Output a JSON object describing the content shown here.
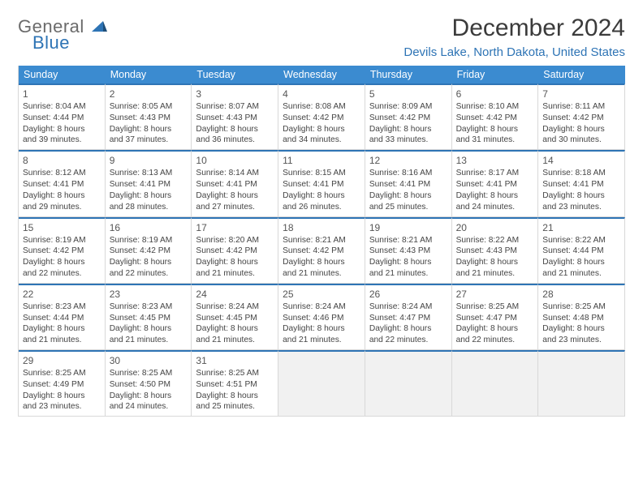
{
  "logo": {
    "line1": "General",
    "line2": "Blue"
  },
  "title": "December 2024",
  "location": "Devils Lake, North Dakota, United States",
  "colors": {
    "header_bg": "#3b8bd0",
    "accent": "#2e74b5",
    "text": "#3b3b3b",
    "cell_border": "#d8d8d8",
    "empty_bg": "#f1f1f1"
  },
  "days_of_week": [
    "Sunday",
    "Monday",
    "Tuesday",
    "Wednesday",
    "Thursday",
    "Friday",
    "Saturday"
  ],
  "days": [
    {
      "n": 1,
      "sunrise": "8:04 AM",
      "sunset": "4:44 PM",
      "daylight": "8 hours and 39 minutes."
    },
    {
      "n": 2,
      "sunrise": "8:05 AM",
      "sunset": "4:43 PM",
      "daylight": "8 hours and 37 minutes."
    },
    {
      "n": 3,
      "sunrise": "8:07 AM",
      "sunset": "4:43 PM",
      "daylight": "8 hours and 36 minutes."
    },
    {
      "n": 4,
      "sunrise": "8:08 AM",
      "sunset": "4:42 PM",
      "daylight": "8 hours and 34 minutes."
    },
    {
      "n": 5,
      "sunrise": "8:09 AM",
      "sunset": "4:42 PM",
      "daylight": "8 hours and 33 minutes."
    },
    {
      "n": 6,
      "sunrise": "8:10 AM",
      "sunset": "4:42 PM",
      "daylight": "8 hours and 31 minutes."
    },
    {
      "n": 7,
      "sunrise": "8:11 AM",
      "sunset": "4:42 PM",
      "daylight": "8 hours and 30 minutes."
    },
    {
      "n": 8,
      "sunrise": "8:12 AM",
      "sunset": "4:41 PM",
      "daylight": "8 hours and 29 minutes."
    },
    {
      "n": 9,
      "sunrise": "8:13 AM",
      "sunset": "4:41 PM",
      "daylight": "8 hours and 28 minutes."
    },
    {
      "n": 10,
      "sunrise": "8:14 AM",
      "sunset": "4:41 PM",
      "daylight": "8 hours and 27 minutes."
    },
    {
      "n": 11,
      "sunrise": "8:15 AM",
      "sunset": "4:41 PM",
      "daylight": "8 hours and 26 minutes."
    },
    {
      "n": 12,
      "sunrise": "8:16 AM",
      "sunset": "4:41 PM",
      "daylight": "8 hours and 25 minutes."
    },
    {
      "n": 13,
      "sunrise": "8:17 AM",
      "sunset": "4:41 PM",
      "daylight": "8 hours and 24 minutes."
    },
    {
      "n": 14,
      "sunrise": "8:18 AM",
      "sunset": "4:41 PM",
      "daylight": "8 hours and 23 minutes."
    },
    {
      "n": 15,
      "sunrise": "8:19 AM",
      "sunset": "4:42 PM",
      "daylight": "8 hours and 22 minutes."
    },
    {
      "n": 16,
      "sunrise": "8:19 AM",
      "sunset": "4:42 PM",
      "daylight": "8 hours and 22 minutes."
    },
    {
      "n": 17,
      "sunrise": "8:20 AM",
      "sunset": "4:42 PM",
      "daylight": "8 hours and 21 minutes."
    },
    {
      "n": 18,
      "sunrise": "8:21 AM",
      "sunset": "4:42 PM",
      "daylight": "8 hours and 21 minutes."
    },
    {
      "n": 19,
      "sunrise": "8:21 AM",
      "sunset": "4:43 PM",
      "daylight": "8 hours and 21 minutes."
    },
    {
      "n": 20,
      "sunrise": "8:22 AM",
      "sunset": "4:43 PM",
      "daylight": "8 hours and 21 minutes."
    },
    {
      "n": 21,
      "sunrise": "8:22 AM",
      "sunset": "4:44 PM",
      "daylight": "8 hours and 21 minutes."
    },
    {
      "n": 22,
      "sunrise": "8:23 AM",
      "sunset": "4:44 PM",
      "daylight": "8 hours and 21 minutes."
    },
    {
      "n": 23,
      "sunrise": "8:23 AM",
      "sunset": "4:45 PM",
      "daylight": "8 hours and 21 minutes."
    },
    {
      "n": 24,
      "sunrise": "8:24 AM",
      "sunset": "4:45 PM",
      "daylight": "8 hours and 21 minutes."
    },
    {
      "n": 25,
      "sunrise": "8:24 AM",
      "sunset": "4:46 PM",
      "daylight": "8 hours and 21 minutes."
    },
    {
      "n": 26,
      "sunrise": "8:24 AM",
      "sunset": "4:47 PM",
      "daylight": "8 hours and 22 minutes."
    },
    {
      "n": 27,
      "sunrise": "8:25 AM",
      "sunset": "4:47 PM",
      "daylight": "8 hours and 22 minutes."
    },
    {
      "n": 28,
      "sunrise": "8:25 AM",
      "sunset": "4:48 PM",
      "daylight": "8 hours and 23 minutes."
    },
    {
      "n": 29,
      "sunrise": "8:25 AM",
      "sunset": "4:49 PM",
      "daylight": "8 hours and 23 minutes."
    },
    {
      "n": 30,
      "sunrise": "8:25 AM",
      "sunset": "4:50 PM",
      "daylight": "8 hours and 24 minutes."
    },
    {
      "n": 31,
      "sunrise": "8:25 AM",
      "sunset": "4:51 PM",
      "daylight": "8 hours and 25 minutes."
    }
  ],
  "labels": {
    "sunrise": "Sunrise: ",
    "sunset": "Sunset: ",
    "daylight": "Daylight: "
  },
  "grid": {
    "first_weekday_offset": 0,
    "trailing_empty": 4
  },
  "typography": {
    "title_fontsize": 30,
    "location_fontsize": 15,
    "dow_fontsize": 12.5,
    "cell_fontsize": 10.2,
    "daynum_fontsize": 12
  }
}
